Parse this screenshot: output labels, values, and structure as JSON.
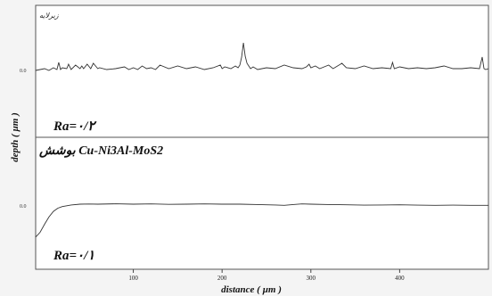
{
  "chart_data": [
    {
      "type": "line",
      "panel_label": "زیرلایه",
      "zero_label": "0.0",
      "ra_label": "Ra=۰/۲",
      "xlim": [
        -10,
        500
      ],
      "series": [
        {
          "x": [
            -10,
            0,
            5,
            10,
            14,
            16,
            18,
            20,
            25,
            27,
            30,
            35,
            40,
            42,
            44,
            48,
            52,
            55,
            60,
            62,
            70,
            80,
            90,
            95,
            100,
            105,
            110,
            115,
            120,
            125,
            130,
            140,
            150,
            160,
            170,
            180,
            190,
            198,
            200,
            203,
            210,
            215,
            218,
            220,
            222,
            224,
            226,
            228,
            230,
            232,
            235,
            240,
            250,
            260,
            270,
            280,
            290,
            295,
            298,
            300,
            305,
            310,
            320,
            325,
            330,
            335,
            340,
            350,
            360,
            370,
            380,
            390,
            392,
            394,
            400,
            410,
            420,
            430,
            440,
            450,
            460,
            470,
            480,
            490,
            493,
            495,
            497,
            500
          ],
          "y": [
            0,
            0.2,
            0,
            0.3,
            0.1,
            0.9,
            0.1,
            0.3,
            0.2,
            0.7,
            0.1,
            0.6,
            0.2,
            0.5,
            0.2,
            0.7,
            0.2,
            0.8,
            0.2,
            0.3,
            0.1,
            0.2,
            0.4,
            0.1,
            0.3,
            0.1,
            0.5,
            0.2,
            0.3,
            0.1,
            0.6,
            0.2,
            0.5,
            0.2,
            0.4,
            0.1,
            0.3,
            0.6,
            0.2,
            0.4,
            0.2,
            0.5,
            0.3,
            0.6,
            1.5,
            3.1,
            1.6,
            0.8,
            0.5,
            0.2,
            0.4,
            0.1,
            0.3,
            0.2,
            0.6,
            0.3,
            0.2,
            0.4,
            0.7,
            0.3,
            0.5,
            0.2,
            0.6,
            0.2,
            0.5,
            0.8,
            0.3,
            0.2,
            0.5,
            0.2,
            0.3,
            0.2,
            0.9,
            0.2,
            0.4,
            0.2,
            0.3,
            0.2,
            0.3,
            0.5,
            0.2,
            0.2,
            0.3,
            0.2,
            1.5,
            0.2,
            0.1,
            0.2
          ]
        }
      ]
    },
    {
      "type": "line",
      "panel_label": "بوشش Cu-Ni3Al-MoS2",
      "zero_label": "0.0",
      "ra_label": "Ra=۰/۱",
      "xlabel": "distance ( µm )",
      "ylabel": "depth ( µm )",
      "xlim": [
        -10,
        500
      ],
      "xticks": [
        100,
        200,
        300,
        400
      ],
      "series": [
        {
          "x": [
            -10,
            -5,
            0,
            5,
            10,
            15,
            20,
            25,
            30,
            40,
            50,
            60,
            80,
            100,
            120,
            140,
            160,
            180,
            200,
            220,
            240,
            260,
            270,
            280,
            290,
            300,
            320,
            340,
            360,
            380,
            400,
            420,
            440,
            460,
            480,
            500
          ],
          "y": [
            -4.1,
            -3.5,
            -2.5,
            -1.6,
            -0.9,
            -0.5,
            -0.3,
            -0.2,
            -0.1,
            0,
            0.02,
            0,
            0.05,
            0,
            0.03,
            -0.02,
            0,
            0.03,
            0,
            0,
            -0.05,
            -0.1,
            -0.15,
            -0.05,
            0.03,
            0,
            -0.05,
            -0.08,
            -0.12,
            -0.1,
            -0.08,
            -0.12,
            -0.15,
            -0.12,
            -0.15,
            -0.15
          ]
        }
      ]
    }
  ]
}
